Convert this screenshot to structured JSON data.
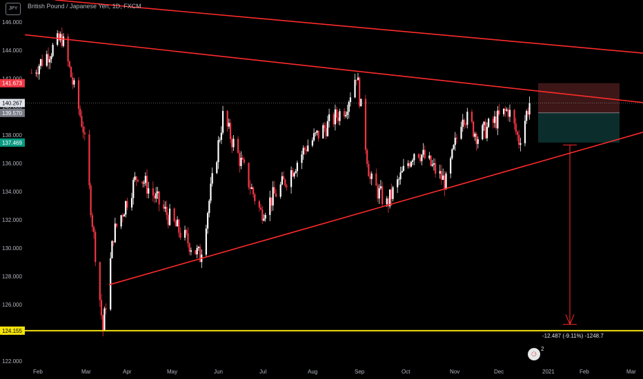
{
  "header": {
    "currency_badge": "JPY",
    "title": "British Pound / Japanese Yen, 1D, FXCM"
  },
  "chart_data": {
    "type": "candlestick",
    "title": "British Pound / Japanese Yen, 1D, FXCM",
    "y_ticks": [
      "146.000",
      "144.000",
      "142.000",
      "140.000",
      "138.000",
      "136.000",
      "134.000",
      "132.000",
      "130.000",
      "128.000",
      "126.000",
      "124.000",
      "122.000"
    ],
    "y_tick_values": [
      146,
      144,
      142,
      140,
      138,
      136,
      134,
      132,
      130,
      128,
      126,
      124,
      122
    ],
    "ylim": [
      122,
      146.5
    ],
    "x_ticks": [
      "Feb",
      "Mar",
      "Apr",
      "May",
      "Jun",
      "Jul",
      "Aug",
      "Sep",
      "Oct",
      "Nov",
      "Dec",
      "2021",
      "Feb",
      "Mar"
    ],
    "price_labels": [
      {
        "value": 141.673,
        "text": "141.673",
        "color": "#f23645"
      },
      {
        "value": 140.267,
        "text": "140.267",
        "color": "#e0e3eb"
      },
      {
        "value": 139.57,
        "text": "139.570",
        "color": "#787b86"
      },
      {
        "value": 137.469,
        "text": "137.469",
        "color": "#089981"
      },
      {
        "value": 124.155,
        "text": "124.155",
        "color": "#f5e30b"
      }
    ],
    "measurement_label": "-12.487 (-9.11%) -1248.7",
    "swing_points": [
      {
        "date": "2020-01-31",
        "price": 142.4
      },
      {
        "date": "2020-02-20",
        "price": 144.9
      },
      {
        "date": "2020-03-05",
        "price": 138.5
      },
      {
        "date": "2020-03-18",
        "price": 124.2
      },
      {
        "date": "2020-03-25",
        "price": 131.0
      },
      {
        "date": "2020-04-10",
        "price": 135.3
      },
      {
        "date": "2020-05-05",
        "price": 131.5
      },
      {
        "date": "2020-05-21",
        "price": 129.4
      },
      {
        "date": "2020-06-05",
        "price": 139.3
      },
      {
        "date": "2020-06-30",
        "price": 132.5
      },
      {
        "date": "2020-07-15",
        "price": 134.6
      },
      {
        "date": "2020-07-30",
        "price": 137.2
      },
      {
        "date": "2020-08-25",
        "price": 140.0
      },
      {
        "date": "2020-09-01",
        "price": 142.4
      },
      {
        "date": "2020-09-10",
        "price": 134.8
      },
      {
        "date": "2020-09-21",
        "price": 133.1
      },
      {
        "date": "2020-10-10",
        "price": 137.1
      },
      {
        "date": "2020-10-30",
        "price": 134.6
      },
      {
        "date": "2020-11-10",
        "price": 139.6
      },
      {
        "date": "2020-11-20",
        "price": 137.9
      },
      {
        "date": "2020-12-10",
        "price": 139.8
      },
      {
        "date": "2020-12-17",
        "price": 137.6
      },
      {
        "date": "2020-12-24",
        "price": 140.3
      }
    ],
    "colors": {
      "up": "#ffffff",
      "down": "#f23645",
      "trendline": "#ff2b2b",
      "support": "#f5e30b",
      "stop_zone": "#3d1717",
      "target_zone": "#0b2e2c"
    }
  }
}
